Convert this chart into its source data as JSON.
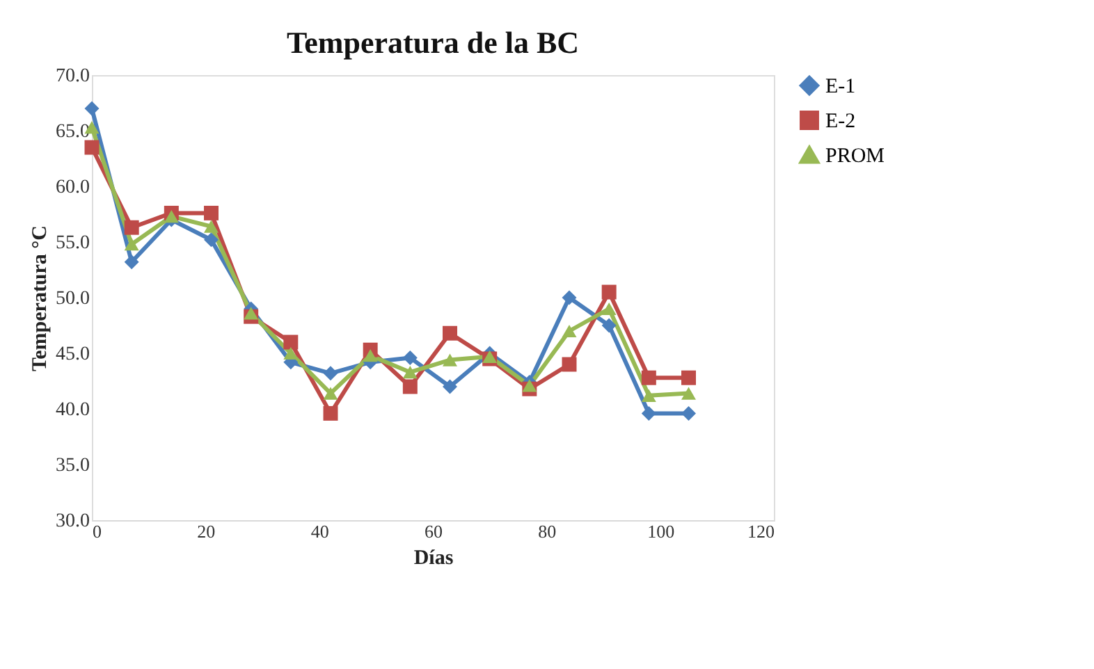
{
  "chart_data": {
    "type": "line",
    "title": "Temperatura  de la BC",
    "xlabel": "Días",
    "ylabel": "Temperatura °C",
    "x": [
      0,
      7,
      14,
      21,
      28,
      35,
      42,
      49,
      56,
      63,
      70,
      77,
      84,
      91,
      98,
      105
    ],
    "series": [
      {
        "name": "E-1",
        "color": "#4a7ebb",
        "marker": "diamond",
        "values": [
          67.0,
          53.2,
          57.0,
          55.2,
          49.0,
          44.2,
          43.2,
          44.2,
          44.6,
          42.0,
          45.0,
          42.4,
          50.0,
          47.5,
          39.6,
          39.6
        ]
      },
      {
        "name": "E-2",
        "color": "#be4b48",
        "marker": "square",
        "values": [
          63.5,
          56.3,
          57.6,
          57.6,
          48.3,
          46.0,
          39.6,
          45.3,
          42.0,
          46.8,
          44.5,
          41.8,
          44.0,
          50.5,
          42.8,
          42.8
        ]
      },
      {
        "name": "PROM",
        "color": "#98b954",
        "marker": "triangle",
        "values": [
          65.3,
          54.8,
          57.3,
          56.4,
          48.6,
          45.0,
          41.4,
          44.8,
          43.3,
          44.4,
          44.7,
          42.1,
          47.0,
          49.0,
          41.2,
          41.4
        ]
      }
    ],
    "xlim": [
      0,
      120
    ],
    "xticks": [
      0,
      20,
      40,
      60,
      80,
      100,
      120
    ],
    "ylim": [
      30,
      70
    ],
    "yticks": [
      {
        "value": 30,
        "label": "30.0"
      },
      {
        "value": 35,
        "label": "35.0"
      },
      {
        "value": 40,
        "label": "40.0"
      },
      {
        "value": 45,
        "label": "45.0"
      },
      {
        "value": 50,
        "label": "50.0"
      },
      {
        "value": 55,
        "label": "55.0"
      },
      {
        "value": 60,
        "label": "60.0"
      },
      {
        "value": 65,
        "label": "65.0"
      },
      {
        "value": 70,
        "label": "70.0"
      }
    ],
    "grid": false,
    "legend": "right",
    "line_style": "solid"
  }
}
